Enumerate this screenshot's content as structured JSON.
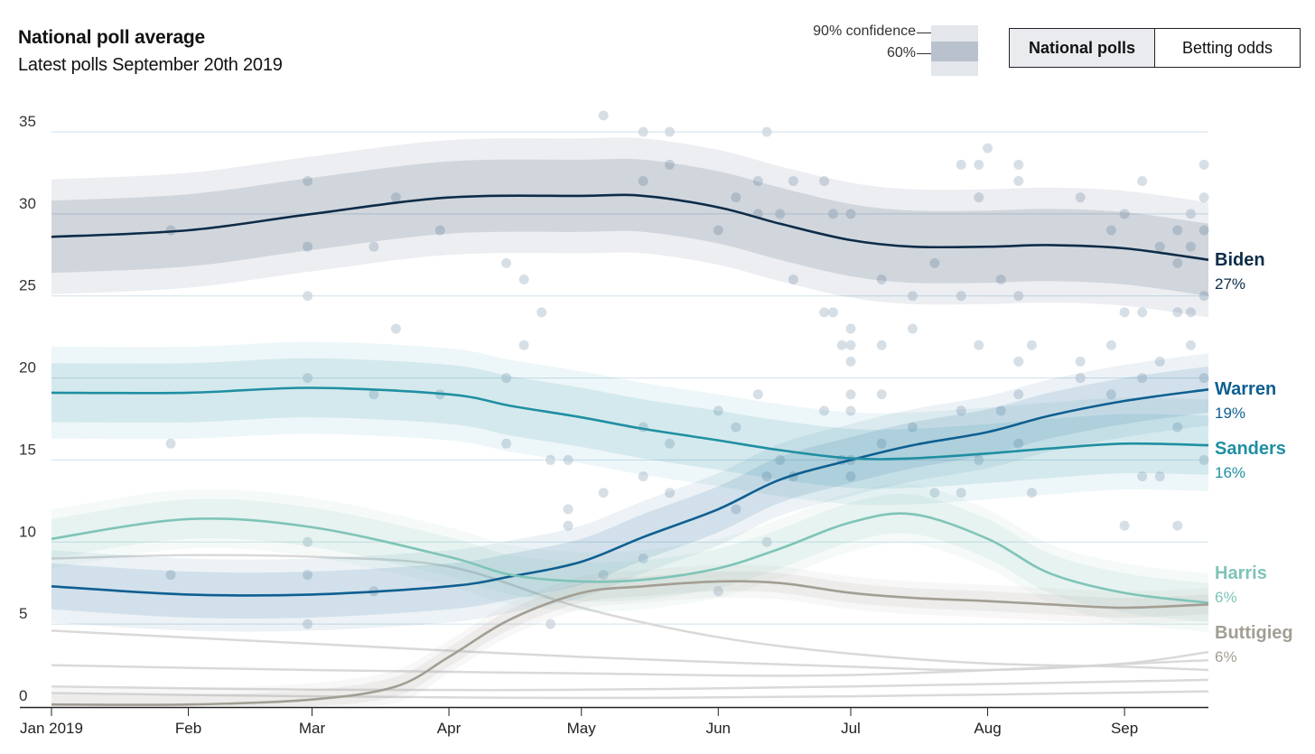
{
  "header": {
    "title": "National poll average",
    "subtitle": "Latest polls September 20th 2019"
  },
  "confidence_legend": {
    "outer_label": "90% confidence",
    "inner_label": "60%"
  },
  "toggle": {
    "options": [
      "National polls",
      "Betting odds"
    ],
    "selected": "National polls"
  },
  "chart_data": {
    "type": "line",
    "title": "National poll average",
    "subtitle": "Latest polls September 20th 2019",
    "xlabel": "",
    "ylabel": "",
    "ylim": [
      0,
      35
    ],
    "yticks": [
      0,
      5,
      10,
      15,
      20,
      25,
      30,
      35
    ],
    "xlim": [
      "2019-01-01",
      "2019-09-20"
    ],
    "xticks": [
      {
        "date": "2019-01-01",
        "label": "Jan 2019"
      },
      {
        "date": "2019-02-01",
        "label": "Feb"
      },
      {
        "date": "2019-03-01",
        "label": "Mar"
      },
      {
        "date": "2019-04-01",
        "label": "Apr"
      },
      {
        "date": "2019-05-01",
        "label": "May"
      },
      {
        "date": "2019-06-01",
        "label": "Jun"
      },
      {
        "date": "2019-07-01",
        "label": "Jul"
      },
      {
        "date": "2019-08-01",
        "label": "Aug"
      },
      {
        "date": "2019-09-01",
        "label": "Sep"
      }
    ],
    "grid": true,
    "confidence_bands": [
      "90%",
      "60%"
    ],
    "series": [
      {
        "name": "Biden",
        "final_label": "27%",
        "color": "#0d2c48",
        "band60": 2.2,
        "band90": 3.5,
        "x": [
          "2019-01-01",
          "2019-02-01",
          "2019-03-01",
          "2019-04-01",
          "2019-05-01",
          "2019-05-15",
          "2019-06-01",
          "2019-06-15",
          "2019-07-01",
          "2019-07-15",
          "2019-08-01",
          "2019-08-15",
          "2019-09-01",
          "2019-09-20"
        ],
        "y": [
          28.6,
          29.0,
          30.0,
          31.0,
          31.1,
          31.1,
          30.4,
          29.4,
          28.4,
          28.0,
          28.0,
          28.1,
          27.9,
          27.2
        ]
      },
      {
        "name": "Warren",
        "final_label": "19%",
        "color": "#0e5f91",
        "band60": 1.4,
        "band90": 2.2,
        "x": [
          "2019-01-01",
          "2019-02-01",
          "2019-03-01",
          "2019-04-01",
          "2019-04-15",
          "2019-05-01",
          "2019-05-15",
          "2019-06-01",
          "2019-06-15",
          "2019-07-01",
          "2019-07-15",
          "2019-08-01",
          "2019-08-15",
          "2019-09-01",
          "2019-09-20"
        ],
        "y": [
          7.3,
          6.8,
          6.8,
          7.3,
          7.9,
          8.8,
          10.3,
          12.0,
          13.8,
          15.0,
          15.9,
          16.7,
          17.7,
          18.6,
          19.3
        ]
      },
      {
        "name": "Sanders",
        "final_label": "16%",
        "color": "#1f8fa2",
        "band60": 1.8,
        "band90": 2.8,
        "x": [
          "2019-01-01",
          "2019-02-01",
          "2019-03-01",
          "2019-04-01",
          "2019-04-15",
          "2019-05-01",
          "2019-05-15",
          "2019-06-01",
          "2019-06-15",
          "2019-07-01",
          "2019-07-15",
          "2019-08-01",
          "2019-08-15",
          "2019-09-01",
          "2019-09-20"
        ],
        "y": [
          19.1,
          19.1,
          19.4,
          19.0,
          18.3,
          17.6,
          16.9,
          16.2,
          15.6,
          15.1,
          15.1,
          15.4,
          15.7,
          16.0,
          15.9
        ]
      },
      {
        "name": "Harris",
        "final_label": "6%",
        "color": "#7fc4b8",
        "band60": 1.2,
        "band90": 1.8,
        "x": [
          "2019-01-01",
          "2019-02-01",
          "2019-03-01",
          "2019-04-01",
          "2019-04-15",
          "2019-05-01",
          "2019-05-15",
          "2019-06-01",
          "2019-06-15",
          "2019-07-01",
          "2019-07-15",
          "2019-08-01",
          "2019-08-15",
          "2019-09-01",
          "2019-09-20"
        ],
        "y": [
          10.2,
          11.4,
          10.9,
          9.1,
          8.0,
          7.6,
          7.7,
          8.4,
          9.6,
          11.2,
          11.7,
          10.2,
          8.1,
          6.9,
          6.3
        ]
      },
      {
        "name": "Buttigieg",
        "final_label": "6%",
        "color": "#a39e93",
        "band60": 0.6,
        "band90": 1.0,
        "x": [
          "2019-01-01",
          "2019-02-01",
          "2019-03-01",
          "2019-03-20",
          "2019-04-01",
          "2019-04-15",
          "2019-05-01",
          "2019-05-15",
          "2019-06-01",
          "2019-06-15",
          "2019-07-01",
          "2019-07-15",
          "2019-08-01",
          "2019-08-15",
          "2019-09-01",
          "2019-09-20"
        ],
        "y": [
          0.1,
          0.1,
          0.4,
          1.2,
          3.0,
          5.3,
          6.9,
          7.3,
          7.6,
          7.5,
          6.9,
          6.6,
          6.4,
          6.2,
          6.0,
          6.2
        ]
      },
      {
        "name": "",
        "color": "#d5d5d5",
        "x": [
          "2019-01-01",
          "2019-02-01",
          "2019-03-01",
          "2019-04-01",
          "2019-05-01",
          "2019-06-01",
          "2019-07-01",
          "2019-08-01",
          "2019-09-01",
          "2019-09-20"
        ],
        "y": [
          9.0,
          9.2,
          9.1,
          8.5,
          6.0,
          4.2,
          3.2,
          2.6,
          2.4,
          2.2
        ]
      },
      {
        "name": "",
        "color": "#d5d5d5",
        "x": [
          "2019-01-01",
          "2019-03-01",
          "2019-05-01",
          "2019-07-01",
          "2019-08-01",
          "2019-09-01",
          "2019-09-20"
        ],
        "y": [
          4.6,
          3.8,
          3.0,
          2.4,
          2.2,
          2.6,
          3.3
        ]
      },
      {
        "name": "",
        "color": "#d5d5d5",
        "x": [
          "2019-01-01",
          "2019-03-01",
          "2019-05-01",
          "2019-07-01",
          "2019-09-20"
        ],
        "y": [
          2.5,
          2.2,
          2.0,
          1.9,
          2.8
        ]
      },
      {
        "name": "",
        "color": "#d5d5d5",
        "x": [
          "2019-01-01",
          "2019-03-01",
          "2019-05-01",
          "2019-07-01",
          "2019-09-20"
        ],
        "y": [
          1.2,
          1.0,
          1.0,
          1.2,
          1.6
        ]
      },
      {
        "name": "",
        "color": "#d5d5d5",
        "x": [
          "2019-01-01",
          "2019-03-01",
          "2019-05-01",
          "2019-07-01",
          "2019-09-20"
        ],
        "y": [
          0.8,
          0.6,
          0.5,
          0.6,
          0.9
        ]
      }
    ],
    "poll_points": [
      {
        "x": "2019-01-28",
        "y": 29
      },
      {
        "x": "2019-01-28",
        "y": 16
      },
      {
        "x": "2019-01-28",
        "y": 8
      },
      {
        "x": "2019-02-28",
        "y": 32
      },
      {
        "x": "2019-02-28",
        "y": 28
      },
      {
        "x": "2019-02-28",
        "y": 25
      },
      {
        "x": "2019-02-28",
        "y": 20
      },
      {
        "x": "2019-02-28",
        "y": 10
      },
      {
        "x": "2019-02-28",
        "y": 8
      },
      {
        "x": "2019-02-28",
        "y": 5
      },
      {
        "x": "2019-03-15",
        "y": 28
      },
      {
        "x": "2019-03-15",
        "y": 19
      },
      {
        "x": "2019-03-15",
        "y": 7
      },
      {
        "x": "2019-03-20",
        "y": 31
      },
      {
        "x": "2019-03-20",
        "y": 23
      },
      {
        "x": "2019-03-30",
        "y": 29
      },
      {
        "x": "2019-03-30",
        "y": 19
      },
      {
        "x": "2019-04-14",
        "y": 27
      },
      {
        "x": "2019-04-14",
        "y": 20
      },
      {
        "x": "2019-04-14",
        "y": 16
      },
      {
        "x": "2019-04-18",
        "y": 26
      },
      {
        "x": "2019-04-18",
        "y": 22
      },
      {
        "x": "2019-04-22",
        "y": 24
      },
      {
        "x": "2019-04-24",
        "y": 15
      },
      {
        "x": "2019-04-24",
        "y": 5
      },
      {
        "x": "2019-04-28",
        "y": 15
      },
      {
        "x": "2019-04-28",
        "y": 12
      },
      {
        "x": "2019-04-28",
        "y": 11
      },
      {
        "x": "2019-05-06",
        "y": 36
      },
      {
        "x": "2019-05-06",
        "y": 13
      },
      {
        "x": "2019-05-06",
        "y": 8
      },
      {
        "x": "2019-05-15",
        "y": 35
      },
      {
        "x": "2019-05-15",
        "y": 32
      },
      {
        "x": "2019-05-15",
        "y": 17
      },
      {
        "x": "2019-05-15",
        "y": 14
      },
      {
        "x": "2019-05-15",
        "y": 9
      },
      {
        "x": "2019-05-21",
        "y": 35
      },
      {
        "x": "2019-05-21",
        "y": 33
      },
      {
        "x": "2019-05-21",
        "y": 16
      },
      {
        "x": "2019-05-21",
        "y": 13
      },
      {
        "x": "2019-06-01",
        "y": 29
      },
      {
        "x": "2019-06-01",
        "y": 18
      },
      {
        "x": "2019-06-01",
        "y": 7
      },
      {
        "x": "2019-06-05",
        "y": 31
      },
      {
        "x": "2019-06-05",
        "y": 17
      },
      {
        "x": "2019-06-05",
        "y": 12
      },
      {
        "x": "2019-06-10",
        "y": 32
      },
      {
        "x": "2019-06-10",
        "y": 30
      },
      {
        "x": "2019-06-10",
        "y": 19
      },
      {
        "x": "2019-06-12",
        "y": 35
      },
      {
        "x": "2019-06-12",
        "y": 14
      },
      {
        "x": "2019-06-12",
        "y": 10
      },
      {
        "x": "2019-06-15",
        "y": 30
      },
      {
        "x": "2019-06-15",
        "y": 15
      },
      {
        "x": "2019-06-18",
        "y": 32
      },
      {
        "x": "2019-06-18",
        "y": 26
      },
      {
        "x": "2019-06-18",
        "y": 14
      },
      {
        "x": "2019-06-25",
        "y": 32
      },
      {
        "x": "2019-06-25",
        "y": 24
      },
      {
        "x": "2019-06-25",
        "y": 18
      },
      {
        "x": "2019-06-27",
        "y": 30
      },
      {
        "x": "2019-06-27",
        "y": 24
      },
      {
        "x": "2019-06-29",
        "y": 22
      },
      {
        "x": "2019-06-29",
        "y": 15
      },
      {
        "x": "2019-07-01",
        "y": 30
      },
      {
        "x": "2019-07-01",
        "y": 23
      },
      {
        "x": "2019-07-01",
        "y": 22
      },
      {
        "x": "2019-07-01",
        "y": 21
      },
      {
        "x": "2019-07-01",
        "y": 19
      },
      {
        "x": "2019-07-01",
        "y": 18
      },
      {
        "x": "2019-07-01",
        "y": 15
      },
      {
        "x": "2019-07-01",
        "y": 14
      },
      {
        "x": "2019-07-08",
        "y": 26
      },
      {
        "x": "2019-07-08",
        "y": 22
      },
      {
        "x": "2019-07-08",
        "y": 19
      },
      {
        "x": "2019-07-08",
        "y": 16
      },
      {
        "x": "2019-07-15",
        "y": 25
      },
      {
        "x": "2019-07-15",
        "y": 23
      },
      {
        "x": "2019-07-15",
        "y": 17
      },
      {
        "x": "2019-07-20",
        "y": 27
      },
      {
        "x": "2019-07-20",
        "y": 13
      },
      {
        "x": "2019-07-26",
        "y": 33
      },
      {
        "x": "2019-07-26",
        "y": 25
      },
      {
        "x": "2019-07-26",
        "y": 18
      },
      {
        "x": "2019-07-26",
        "y": 13
      },
      {
        "x": "2019-07-30",
        "y": 33
      },
      {
        "x": "2019-07-30",
        "y": 31
      },
      {
        "x": "2019-07-30",
        "y": 22
      },
      {
        "x": "2019-07-30",
        "y": 15
      },
      {
        "x": "2019-08-01",
        "y": 34
      },
      {
        "x": "2019-08-04",
        "y": 26
      },
      {
        "x": "2019-08-04",
        "y": 18
      },
      {
        "x": "2019-08-08",
        "y": 33
      },
      {
        "x": "2019-08-08",
        "y": 32
      },
      {
        "x": "2019-08-08",
        "y": 25
      },
      {
        "x": "2019-08-08",
        "y": 21
      },
      {
        "x": "2019-08-08",
        "y": 19
      },
      {
        "x": "2019-08-08",
        "y": 16
      },
      {
        "x": "2019-08-11",
        "y": 22
      },
      {
        "x": "2019-08-11",
        "y": 13
      },
      {
        "x": "2019-08-22",
        "y": 31
      },
      {
        "x": "2019-08-22",
        "y": 21
      },
      {
        "x": "2019-08-22",
        "y": 20
      },
      {
        "x": "2019-08-29",
        "y": 29
      },
      {
        "x": "2019-08-29",
        "y": 22
      },
      {
        "x": "2019-08-29",
        "y": 19
      },
      {
        "x": "2019-09-01",
        "y": 30
      },
      {
        "x": "2019-09-01",
        "y": 24
      },
      {
        "x": "2019-09-01",
        "y": 11
      },
      {
        "x": "2019-09-05",
        "y": 32
      },
      {
        "x": "2019-09-05",
        "y": 24
      },
      {
        "x": "2019-09-05",
        "y": 20
      },
      {
        "x": "2019-09-05",
        "y": 14
      },
      {
        "x": "2019-09-09",
        "y": 28
      },
      {
        "x": "2019-09-09",
        "y": 21
      },
      {
        "x": "2019-09-09",
        "y": 14
      },
      {
        "x": "2019-09-13",
        "y": 29
      },
      {
        "x": "2019-09-13",
        "y": 27
      },
      {
        "x": "2019-09-13",
        "y": 24
      },
      {
        "x": "2019-09-13",
        "y": 17
      },
      {
        "x": "2019-09-13",
        "y": 11
      },
      {
        "x": "2019-09-16",
        "y": 30
      },
      {
        "x": "2019-09-16",
        "y": 28
      },
      {
        "x": "2019-09-16",
        "y": 24
      },
      {
        "x": "2019-09-16",
        "y": 22
      },
      {
        "x": "2019-09-19",
        "y": 33
      },
      {
        "x": "2019-09-19",
        "y": 31
      },
      {
        "x": "2019-09-19",
        "y": 29
      },
      {
        "x": "2019-09-19",
        "y": 25
      },
      {
        "x": "2019-09-19",
        "y": 20
      },
      {
        "x": "2019-09-19",
        "y": 15
      }
    ]
  }
}
